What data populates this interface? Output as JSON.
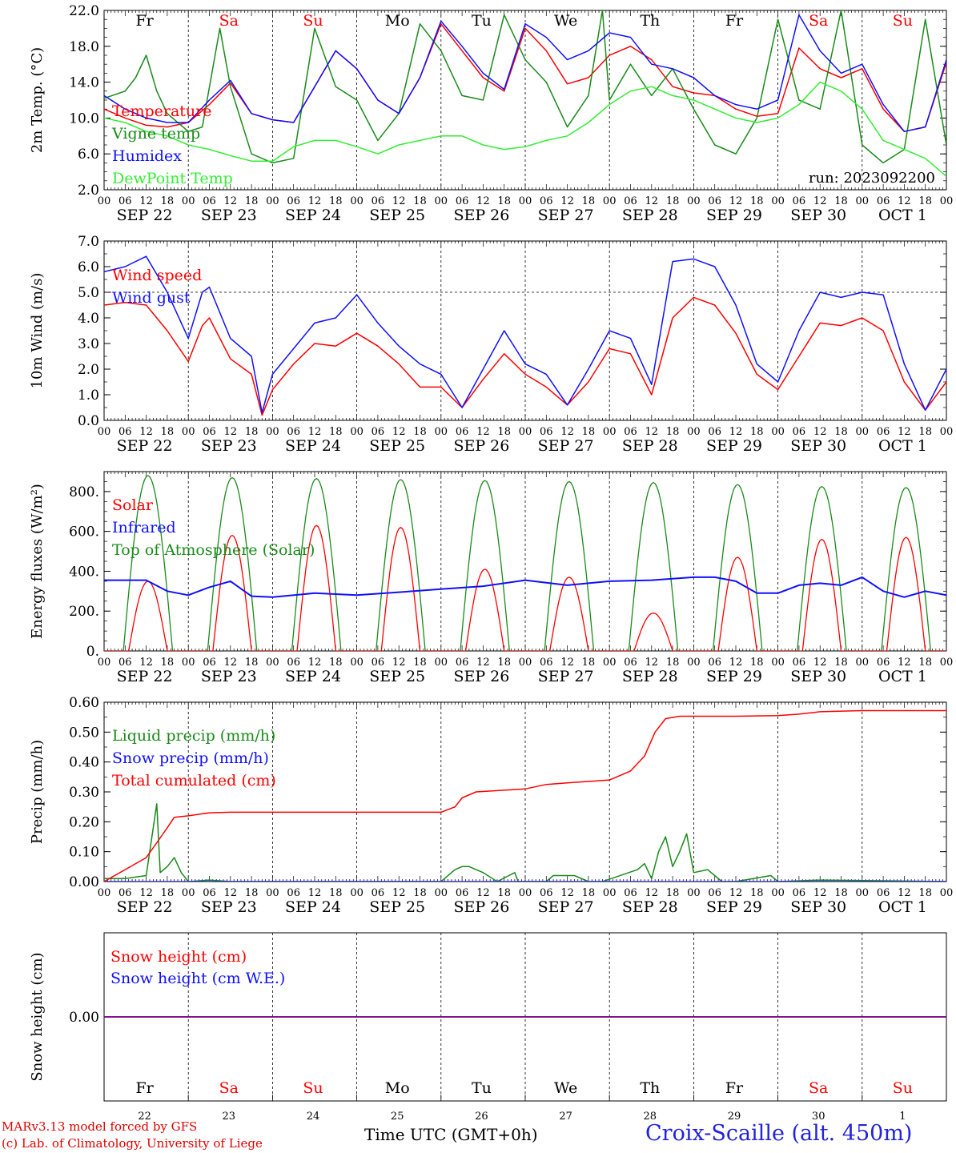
{
  "days": [
    "SEP 22",
    "SEP 23",
    "SEP 24",
    "SEP 25",
    "SEP 26",
    "SEP 27",
    "SEP 28",
    "SEP 29",
    "SEP 30",
    "OCT  1"
  ],
  "hour_labels": [
    "00",
    "06",
    "12",
    "18"
  ],
  "weekdays": [
    "Fr",
    "Sa",
    "Su",
    "Mo",
    "Tu",
    "We",
    "Th",
    "Fr",
    "Sa",
    "Su"
  ],
  "weekday_weekend": [
    false,
    true,
    true,
    false,
    false,
    false,
    false,
    false,
    true,
    true
  ],
  "day_numbers": [
    "22",
    "23",
    "24",
    "25",
    "26",
    "27",
    "28",
    "29",
    "30",
    "1"
  ],
  "run_label": "run: 2023092200",
  "footer": {
    "credit_line1": "MARv3.13 model forced by GFS",
    "credit_line2": "(c) Lab. of Climatology, University of Liege",
    "time_axis_label": "Time UTC (GMT+0h)",
    "station": "Croix-Scaille (alt. 450m)"
  },
  "colors": {
    "red": "#ff0000",
    "green": "#1a8a1a",
    "blue": "#1010ff",
    "lightgreen": "#33ee33",
    "purple": "#800080"
  },
  "chart_data": [
    {
      "type": "line",
      "ylabel": "2m Temp. (°C)",
      "ylim": [
        2.0,
        22.0
      ],
      "yticks": [
        "22.0",
        "18.0",
        "14.0",
        "10.0",
        "6.0",
        "2.0"
      ],
      "ytick_values": [
        22,
        18,
        14,
        10,
        6,
        2
      ],
      "x_unit": "hours since SEP 22 00 UTC",
      "series": [
        {
          "name": "Temperature",
          "color": "#ff0000",
          "x": [
            0,
            6,
            12,
            18,
            24,
            30,
            36,
            42,
            48,
            54,
            60,
            66,
            72,
            78,
            84,
            90,
            96,
            102,
            108,
            114,
            120,
            126,
            132,
            138,
            144,
            150,
            156,
            162,
            168,
            174,
            180,
            186,
            192,
            198,
            204,
            210,
            216,
            222,
            228,
            234,
            240
          ],
          "values": [
            11.0,
            10.0,
            9.2,
            9.0,
            9.5,
            11.5,
            13.9,
            10.5,
            9.8,
            9.5,
            13.5,
            17.5,
            15.5,
            12.0,
            10.5,
            14.5,
            20.5,
            17.5,
            14.5,
            13.0,
            20.0,
            17.5,
            13.8,
            14.5,
            17.0,
            18.0,
            16.5,
            13.5,
            12.8,
            12.5,
            11.0,
            10.2,
            10.5,
            17.8,
            15.5,
            14.5,
            15.5,
            11.0,
            8.5,
            9.0,
            16.2
          ]
        },
        {
          "name": "Vigne temp",
          "color": "#1a8a1a",
          "x": [
            0,
            6,
            9,
            12,
            15,
            18,
            24,
            28,
            33,
            36,
            42,
            48,
            54,
            60,
            66,
            72,
            78,
            84,
            90,
            96,
            102,
            108,
            114,
            120,
            126,
            132,
            138,
            142,
            144,
            150,
            156,
            162,
            168,
            174,
            180,
            186,
            192,
            198,
            204,
            210,
            216,
            222,
            228,
            234,
            240
          ],
          "values": [
            12.2,
            13.0,
            14.5,
            17.0,
            13.0,
            10.5,
            8.5,
            9.0,
            20.0,
            13.5,
            6.0,
            5.0,
            5.5,
            20.0,
            13.5,
            12.0,
            7.5,
            10.5,
            20.5,
            17.5,
            12.5,
            12.0,
            21.5,
            16.5,
            14.0,
            9.0,
            12.5,
            22.0,
            12.0,
            16.0,
            12.5,
            15.5,
            11.0,
            7.0,
            6.0,
            10.0,
            21.0,
            12.0,
            11.0,
            22.0,
            7.0,
            5.0,
            6.5,
            21.0,
            7.0
          ]
        },
        {
          "name": "Humidex",
          "color": "#1010ff",
          "x": [
            0,
            6,
            12,
            18,
            24,
            30,
            36,
            42,
            48,
            54,
            60,
            66,
            72,
            78,
            84,
            90,
            96,
            102,
            108,
            114,
            120,
            126,
            132,
            138,
            144,
            150,
            156,
            162,
            168,
            174,
            180,
            186,
            192,
            198,
            204,
            210,
            216,
            222,
            228,
            234,
            240
          ],
          "values": [
            12.5,
            11.0,
            10.0,
            9.5,
            9.5,
            12.0,
            14.2,
            10.5,
            9.8,
            9.5,
            13.5,
            17.5,
            15.5,
            12.0,
            10.5,
            14.5,
            20.8,
            18.0,
            15.0,
            13.2,
            20.5,
            19.0,
            16.5,
            17.5,
            19.5,
            19.0,
            16.0,
            15.5,
            14.5,
            12.5,
            11.5,
            11.0,
            12.0,
            21.5,
            17.5,
            15.0,
            16.0,
            11.5,
            8.5,
            9.0,
            16.5
          ]
        },
        {
          "name": "DewPoint Temp",
          "color": "#33ee33",
          "x": [
            0,
            6,
            12,
            18,
            24,
            30,
            36,
            42,
            48,
            54,
            60,
            66,
            72,
            78,
            84,
            90,
            96,
            102,
            108,
            114,
            120,
            126,
            132,
            138,
            144,
            150,
            156,
            162,
            168,
            174,
            180,
            186,
            192,
            198,
            204,
            210,
            216,
            222,
            228,
            234,
            240
          ],
          "values": [
            10.0,
            9.5,
            8.5,
            8.0,
            7.0,
            6.5,
            5.8,
            5.2,
            5.2,
            6.8,
            7.5,
            7.5,
            6.8,
            6.0,
            7.0,
            7.5,
            8.0,
            8.0,
            7.0,
            6.5,
            6.8,
            7.5,
            8.0,
            9.5,
            11.5,
            13.0,
            13.5,
            12.5,
            12.0,
            11.0,
            10.0,
            9.5,
            10.0,
            11.5,
            14.0,
            13.0,
            11.0,
            7.5,
            6.5,
            5.5,
            3.5
          ]
        }
      ]
    },
    {
      "type": "line",
      "ylabel": "10m Wind (m/s)",
      "ylim": [
        0.0,
        7.0
      ],
      "yticks": [
        "7.0",
        "6.0",
        "5.0",
        "4.0",
        "3.0",
        "2.0",
        "1.0",
        "0.0"
      ],
      "ytick_values": [
        7,
        6,
        5,
        4,
        3,
        2,
        1,
        0
      ],
      "reference_line": 5.0,
      "x_unit": "hours since SEP 22 00 UTC",
      "series": [
        {
          "name": "Wind speed",
          "color": "#ff0000",
          "x": [
            0,
            6,
            12,
            18,
            24,
            28,
            30,
            36,
            42,
            45,
            48,
            54,
            60,
            66,
            72,
            78,
            84,
            90,
            96,
            102,
            108,
            114,
            120,
            126,
            132,
            138,
            144,
            150,
            156,
            162,
            168,
            174,
            180,
            186,
            192,
            198,
            204,
            210,
            216,
            222,
            228,
            234,
            240
          ],
          "values": [
            4.5,
            4.6,
            4.5,
            3.5,
            2.3,
            3.7,
            4.0,
            2.4,
            1.8,
            0.2,
            1.2,
            2.2,
            3.0,
            2.9,
            3.4,
            2.9,
            2.2,
            1.3,
            1.3,
            0.5,
            1.6,
            2.6,
            1.8,
            1.3,
            0.6,
            1.5,
            2.8,
            2.6,
            1.0,
            4.0,
            4.8,
            4.5,
            3.4,
            1.8,
            1.2,
            2.5,
            3.8,
            3.7,
            4.0,
            3.5,
            1.5,
            0.4,
            1.5
          ]
        },
        {
          "name": "Wind gust",
          "color": "#1010ff",
          "x": [
            0,
            6,
            12,
            18,
            24,
            28,
            30,
            36,
            42,
            45,
            48,
            54,
            60,
            66,
            72,
            78,
            84,
            90,
            96,
            102,
            108,
            114,
            120,
            126,
            132,
            138,
            144,
            150,
            156,
            162,
            168,
            174,
            180,
            186,
            192,
            198,
            204,
            210,
            216,
            222,
            228,
            234,
            240
          ],
          "values": [
            5.8,
            6.0,
            6.4,
            5.0,
            3.2,
            5.0,
            5.2,
            3.2,
            2.5,
            0.3,
            1.8,
            2.8,
            3.8,
            4.0,
            4.9,
            3.8,
            2.9,
            2.2,
            1.8,
            0.5,
            2.0,
            3.5,
            2.2,
            1.8,
            0.6,
            2.0,
            3.5,
            3.2,
            1.4,
            6.2,
            6.3,
            6.0,
            4.5,
            2.2,
            1.5,
            3.5,
            5.0,
            4.8,
            5.0,
            4.9,
            2.2,
            0.4,
            2.0
          ]
        }
      ]
    },
    {
      "type": "line",
      "ylabel": "Energy fluxes (W/m²)",
      "ylim": [
        0,
        900
      ],
      "yticks": [
        "800.",
        "600.",
        "400.",
        "200.",
        "0."
      ],
      "ytick_values": [
        800,
        600,
        400,
        200,
        0
      ],
      "x_unit": "hours since SEP 22 00 UTC",
      "toa_peak": [
        880,
        870,
        865,
        860,
        855,
        850,
        845,
        835,
        825,
        820
      ],
      "solar_peak": [
        350,
        580,
        630,
        620,
        410,
        370,
        190,
        470,
        560,
        570
      ],
      "series": [
        {
          "name": "Solar",
          "color": "#ff0000"
        },
        {
          "name": "Infrared",
          "color": "#1010ff",
          "x": [
            0,
            12,
            18,
            24,
            30,
            36,
            42,
            48,
            60,
            72,
            84,
            96,
            108,
            120,
            132,
            144,
            156,
            168,
            174,
            180,
            186,
            192,
            198,
            204,
            210,
            216,
            222,
            228,
            234,
            240
          ],
          "values": [
            355,
            355,
            300,
            280,
            320,
            350,
            275,
            270,
            290,
            280,
            295,
            310,
            325,
            355,
            330,
            350,
            355,
            370,
            370,
            350,
            290,
            290,
            330,
            340,
            330,
            370,
            300,
            270,
            300,
            280
          ]
        },
        {
          "name": "Top of Atmosphere (Solar)",
          "color": "#1a8a1a"
        }
      ]
    },
    {
      "type": "line",
      "ylabel": "Precip (mm/h)",
      "ylim": [
        0.0,
        0.6
      ],
      "yticks": [
        "0.60",
        "0.50",
        "0.40",
        "0.30",
        "0.20",
        "0.10",
        "0.00"
      ],
      "ytick_values": [
        0.6,
        0.5,
        0.4,
        0.3,
        0.2,
        0.1,
        0.0
      ],
      "x_unit": "hours since SEP 22 00 UTC",
      "series": [
        {
          "name": "Liquid precip (mm/h)",
          "color": "#1a8a1a",
          "x": [
            0,
            6,
            12,
            15,
            16,
            18,
            20,
            22,
            24,
            30,
            36,
            96,
            100,
            102,
            104,
            108,
            112,
            117,
            118,
            126,
            128,
            134,
            138,
            142,
            152,
            154,
            156,
            158,
            160,
            162,
            164,
            166,
            168,
            172,
            176,
            180,
            190,
            192,
            204,
            240
          ],
          "values": [
            0.01,
            0.01,
            0.02,
            0.26,
            0.03,
            0.05,
            0.08,
            0.03,
            0.0,
            0.005,
            0.0,
            0.0,
            0.04,
            0.05,
            0.05,
            0.03,
            0.0,
            0.03,
            0.0,
            0.0,
            0.02,
            0.02,
            0.0,
            0.0,
            0.04,
            0.06,
            0.01,
            0.1,
            0.15,
            0.05,
            0.1,
            0.16,
            0.03,
            0.04,
            0.0,
            0.0,
            0.02,
            0.0,
            0.005,
            0.0
          ]
        },
        {
          "name": "Snow precip (mm/h)",
          "color": "#1010ff",
          "x": [
            0,
            240
          ],
          "values": [
            0.0,
            0.0
          ]
        },
        {
          "name": "Total cumulated (cm)",
          "color": "#ff0000",
          "x": [
            0,
            6,
            12,
            15,
            18,
            20,
            24,
            30,
            36,
            48,
            96,
            100,
            102,
            106,
            120,
            126,
            132,
            144,
            150,
            154,
            157,
            160,
            164,
            168,
            180,
            192,
            198,
            204,
            216,
            240
          ],
          "values": [
            0.0,
            0.04,
            0.08,
            0.13,
            0.18,
            0.215,
            0.22,
            0.23,
            0.232,
            0.232,
            0.232,
            0.25,
            0.28,
            0.3,
            0.31,
            0.325,
            0.33,
            0.34,
            0.37,
            0.42,
            0.5,
            0.545,
            0.553,
            0.553,
            0.553,
            0.555,
            0.56,
            0.568,
            0.572,
            0.572
          ]
        }
      ]
    },
    {
      "type": "line",
      "ylabel": "Snow height (cm)",
      "ylim": [
        -1.0,
        1.0
      ],
      "yticks": [
        "0.00"
      ],
      "ytick_values": [
        0.0
      ],
      "x_unit": "hours since SEP 22 00 UTC",
      "series": [
        {
          "name": "Snow height (cm)",
          "color": "#ff0000",
          "x": [
            0,
            240
          ],
          "values": [
            0.0,
            0.0
          ]
        },
        {
          "name": "Snow height (cm W.E.)",
          "color": "#1010ff",
          "x": [
            0,
            240
          ],
          "values": [
            0.0,
            0.0
          ]
        }
      ]
    }
  ]
}
